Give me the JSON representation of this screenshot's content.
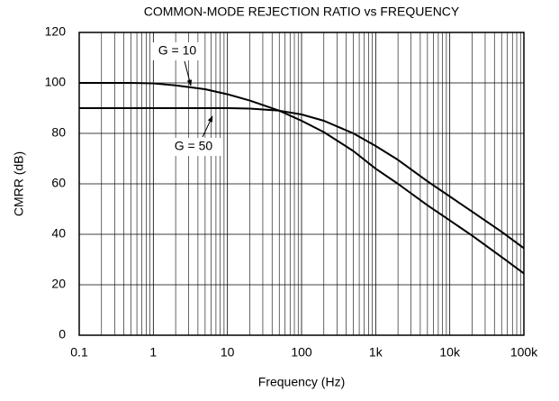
{
  "chart_data": {
    "type": "line",
    "title": "COMMON-MODE REJECTION RATIO vs FREQUENCY",
    "xlabel": "Frequency (Hz)",
    "ylabel": "CMRR (dB)",
    "xscale": "log",
    "grid": true,
    "x": [
      0.1,
      0.5,
      1,
      2,
      5,
      10,
      20,
      50,
      100,
      200,
      500,
      1000,
      2000,
      5000,
      10000,
      20000,
      50000,
      100000
    ],
    "series": [
      {
        "name": "G = 10",
        "color": "#000000",
        "values": [
          100,
          100,
          99.8,
          99,
          97.5,
          95.5,
          93,
          89,
          85,
          80.5,
          73,
          66,
          60,
          51.5,
          45.5,
          39.5,
          31,
          24.5
        ]
      },
      {
        "name": "G = 50",
        "color": "#000000",
        "values": [
          90,
          90,
          90,
          90,
          90,
          90,
          89.8,
          89,
          87.5,
          85,
          80,
          75,
          69.5,
          61,
          55,
          49,
          41,
          34.5
        ]
      }
    ],
    "xlim": [
      0.1,
      100000
    ],
    "xticks": [
      0.1,
      1,
      10,
      100,
      {
        "value": 1000,
        "label": "1k"
      },
      {
        "value": 10000,
        "label": "10k"
      },
      {
        "value": 100000,
        "label": "100k"
      }
    ],
    "ylim": [
      0,
      120
    ],
    "yticks": [
      0,
      20,
      40,
      60,
      80,
      100,
      120
    ]
  }
}
